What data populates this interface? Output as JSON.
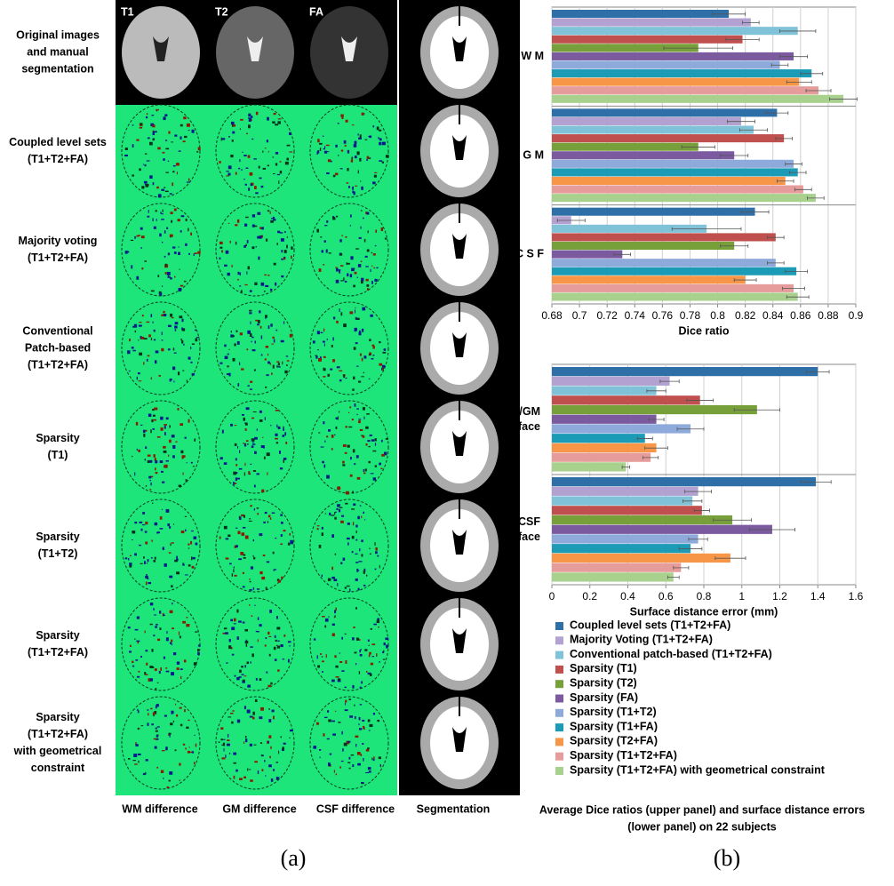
{
  "panel_a": {
    "column_headers": [
      "T1",
      "T2",
      "FA"
    ],
    "row_labels": [
      [
        "Original images",
        "and manual",
        "segmentation"
      ],
      [
        "Coupled level sets",
        "(T1+T2+FA)"
      ],
      [
        "Majority voting",
        "(T1+T2+FA)"
      ],
      [
        "Conventional",
        "Patch-based",
        "(T1+T2+FA)"
      ],
      [
        "Sparsity",
        "(T1)"
      ],
      [
        "Sparsity",
        "(T1+T2)"
      ],
      [
        "Sparsity",
        "(T1+T2+FA)"
      ],
      [
        "Sparsity",
        "(T1+T2+FA)",
        "with geometrical",
        "constraint"
      ]
    ],
    "column_footers": [
      "WM difference",
      "GM difference",
      "CSF difference",
      "Segmentation"
    ],
    "caption": "(a)"
  },
  "panel_b": {
    "caption_lines": [
      "Average Dice ratios (upper panel) and surface distance errors",
      "(lower panel)  on 22 subjects"
    ],
    "caption": "(b)"
  },
  "chart_data": [
    {
      "type": "bar",
      "orientation": "horizontal",
      "xlabel": "Dice ratio",
      "categories": [
        "W M",
        "G M",
        "C S F"
      ],
      "xlim": [
        0.68,
        0.9
      ],
      "xticks": [
        0.68,
        0.7,
        0.72,
        0.74,
        0.76,
        0.78,
        0.8,
        0.82,
        0.84,
        0.86,
        0.88,
        0.9
      ],
      "grid": true,
      "series": [
        {
          "name": "Coupled level sets (T1+T2+FA)",
          "color": "#2e6fa8",
          "values": [
            0.808,
            0.843,
            0.827
          ],
          "errors": [
            0.012,
            0.008,
            0.01
          ]
        },
        {
          "name": "Majority Voting  (T1+T2+FA)",
          "color": "#b3a2d1",
          "values": [
            0.824,
            0.817,
            0.694
          ],
          "errors": [
            0.006,
            0.01,
            0.01
          ]
        },
        {
          "name": "Conventional patch-based (T1+T2+FA)",
          "color": "#80c3d9",
          "values": [
            0.858,
            0.826,
            0.792
          ],
          "errors": [
            0.013,
            0.01,
            0.025
          ]
        },
        {
          "name": "Sparsity (T1)",
          "color": "#c0504d",
          "values": [
            0.818,
            0.848,
            0.842
          ],
          "errors": [
            0.012,
            0.006,
            0.006
          ]
        },
        {
          "name": "Sparsity (T2)",
          "color": "#77a03a",
          "values": [
            0.786,
            0.786,
            0.812
          ],
          "errors": [
            0.025,
            0.012,
            0.01
          ]
        },
        {
          "name": "Sparsity (FA)",
          "color": "#7b5aa0",
          "values": [
            0.855,
            0.812,
            0.731
          ],
          "errors": [
            0.01,
            0.01,
            0.006
          ]
        },
        {
          "name": "Sparsity (T1+T2)",
          "color": "#8eaadb",
          "values": [
            0.845,
            0.855,
            0.842
          ],
          "errors": [
            0.006,
            0.006,
            0.006
          ]
        },
        {
          "name": "Sparsity (T1+FA)",
          "color": "#1c9bb6",
          "values": [
            0.868,
            0.858,
            0.857
          ],
          "errors": [
            0.008,
            0.006,
            0.008
          ]
        },
        {
          "name": "Sparsity (T2+FA)",
          "color": "#f79646",
          "values": [
            0.859,
            0.849,
            0.82
          ],
          "errors": [
            0.009,
            0.006,
            0.008
          ]
        },
        {
          "name": "Sparsity (T1+T2+FA)",
          "color": "#e59c9a",
          "values": [
            0.873,
            0.862,
            0.855
          ],
          "errors": [
            0.009,
            0.006,
            0.008
          ]
        },
        {
          "name": "Sparsity (T1+T2+FA) with geometrical constraint",
          "color": "#a9d18e",
          "values": [
            0.891,
            0.871,
            0.858
          ],
          "errors": [
            0.01,
            0.006,
            0.008
          ]
        }
      ]
    },
    {
      "type": "bar",
      "orientation": "horizontal",
      "xlabel": "Surface distance error (mm)",
      "categories": [
        "WM/GM surface",
        "GM/CSF surface"
      ],
      "xlim": [
        0,
        1.6
      ],
      "xticks": [
        0,
        0.2,
        0.4,
        0.6,
        0.8,
        1,
        1.2,
        1.4,
        1.6
      ],
      "grid": true,
      "series": [
        {
          "color": "#2e6fa8",
          "values": [
            1.4,
            1.39
          ],
          "errors": [
            0.06,
            0.08
          ]
        },
        {
          "color": "#b3a2d1",
          "values": [
            0.62,
            0.77
          ],
          "errors": [
            0.05,
            0.07
          ]
        },
        {
          "color": "#80c3d9",
          "values": [
            0.55,
            0.74
          ],
          "errors": [
            0.05,
            0.05
          ]
        },
        {
          "color": "#c0504d",
          "values": [
            0.78,
            0.79
          ],
          "errors": [
            0.07,
            0.04
          ]
        },
        {
          "color": "#77a03a",
          "values": [
            1.08,
            0.95
          ],
          "errors": [
            0.12,
            0.1
          ]
        },
        {
          "color": "#7b5aa0",
          "values": [
            0.55,
            1.16
          ],
          "errors": [
            0.04,
            0.12
          ]
        },
        {
          "color": "#8eaadb",
          "values": [
            0.73,
            0.77
          ],
          "errors": [
            0.07,
            0.05
          ]
        },
        {
          "color": "#1c9bb6",
          "values": [
            0.49,
            0.73
          ],
          "errors": [
            0.04,
            0.06
          ]
        },
        {
          "color": "#f79646",
          "values": [
            0.55,
            0.94
          ],
          "errors": [
            0.06,
            0.08
          ]
        },
        {
          "color": "#e59c9a",
          "values": [
            0.52,
            0.68
          ],
          "errors": [
            0.04,
            0.04
          ]
        },
        {
          "color": "#a9d18e",
          "values": [
            0.39,
            0.64
          ],
          "errors": [
            0.02,
            0.03
          ]
        }
      ]
    }
  ]
}
